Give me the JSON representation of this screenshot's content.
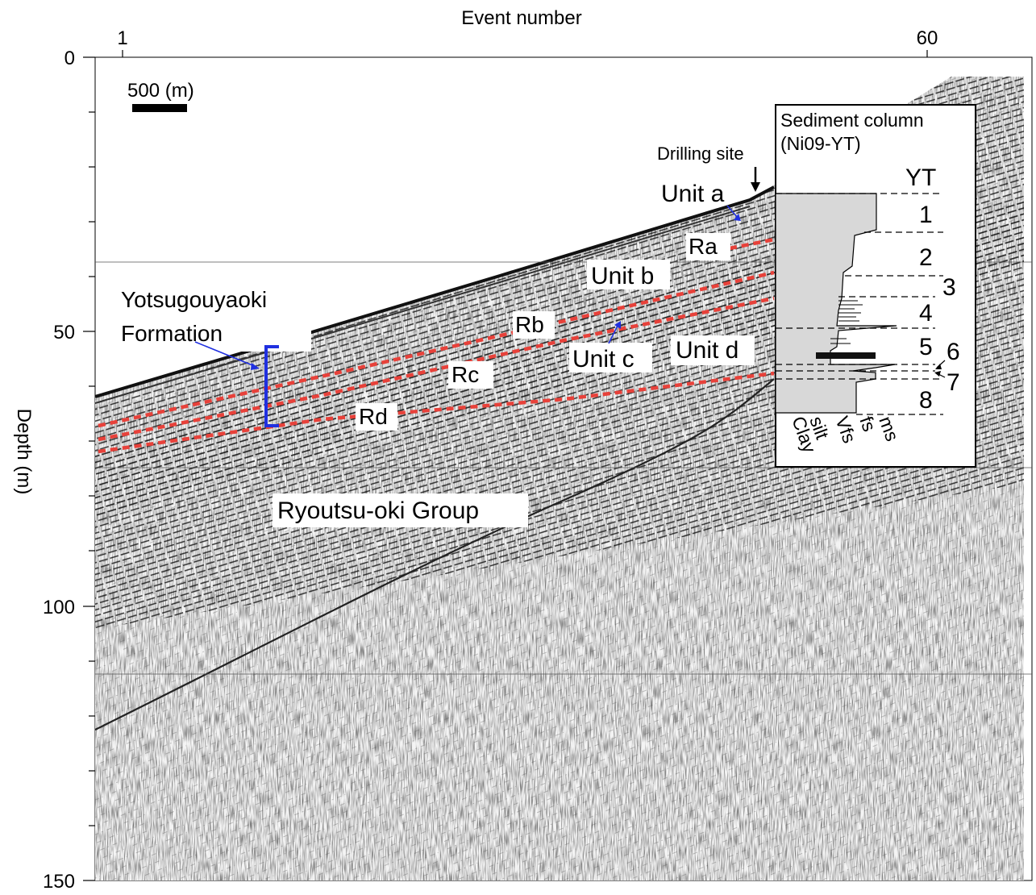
{
  "top_axis": {
    "title": "Event number",
    "ticks": [
      "1",
      "60"
    ]
  },
  "left_axis": {
    "title": "Depth (m)",
    "ticks": [
      "0",
      "50",
      "100",
      "150"
    ]
  },
  "scale_bar": {
    "label": "500 (m)"
  },
  "drilling_site": {
    "label": "Drilling site"
  },
  "units": {
    "a": "Unit a",
    "b": "Unit b",
    "c": "Unit c",
    "d": "Unit d"
  },
  "reflectors": {
    "ra": "Ra",
    "rb": "Rb",
    "rc": "Rc",
    "rd": "Rd"
  },
  "formation": {
    "line1": "Yotsugouyaoki",
    "line2": "Formation"
  },
  "group": {
    "label": "Ryoutsu-oki Group"
  },
  "sediment_column": {
    "title_line1": "Sediment column",
    "title_line2": "(Ni09-YT)",
    "header": "YT",
    "layers": [
      "1",
      "2",
      "3",
      "4",
      "5",
      "6",
      "7",
      "8"
    ],
    "grain_sizes": [
      "Clay",
      "silt",
      "Vfs",
      "fs",
      "ms"
    ]
  },
  "colors": {
    "reflector": "#e8413a",
    "annotation": "#2030e0",
    "column_fill": "#d8d8d8"
  }
}
